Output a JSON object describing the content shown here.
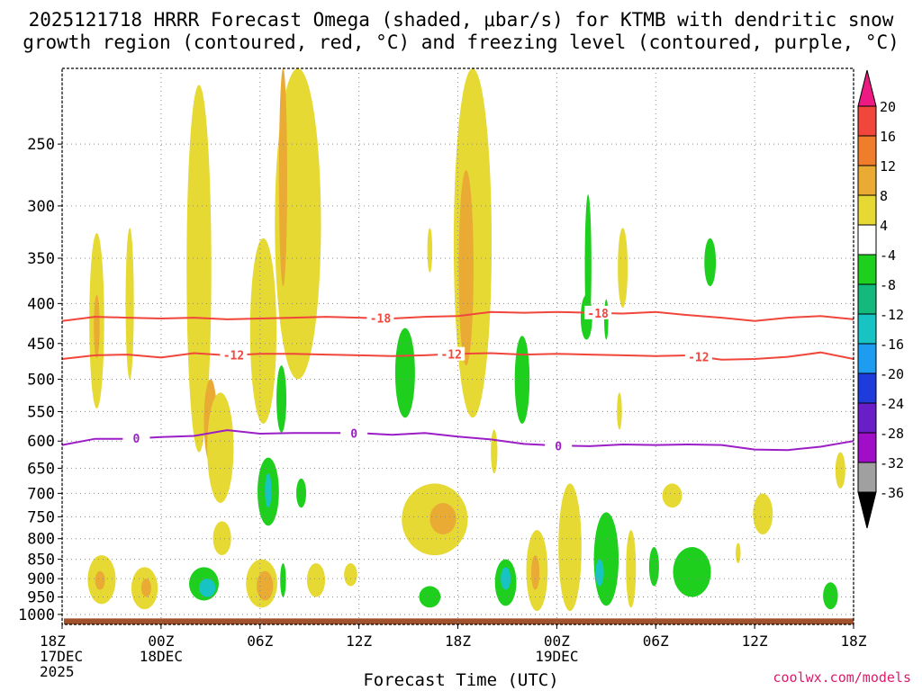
{
  "title_line1": "2025121718 HRRR Forecast Omega (shaded, μbar/s) for KTMB with dendritic snow",
  "title_line2": "growth region (contoured, red, °C) and freezing level (contoured, purple, °C)",
  "credit": "coolwx.com/models",
  "chart_data": {
    "type": "heatmap",
    "xlabel": "Forecast Time (UTC)",
    "ylabel": "",
    "x_range_hours": [
      0,
      48
    ],
    "x_ticks": [
      {
        "hour": 0,
        "lines": [
          "18Z",
          "17DEC",
          "2025"
        ]
      },
      {
        "hour": 6,
        "lines": [
          "00Z",
          "18DEC"
        ]
      },
      {
        "hour": 12,
        "lines": [
          "06Z"
        ]
      },
      {
        "hour": 18,
        "lines": [
          "12Z"
        ]
      },
      {
        "hour": 24,
        "lines": [
          "18Z"
        ]
      },
      {
        "hour": 30,
        "lines": [
          "00Z",
          "19DEC"
        ]
      },
      {
        "hour": 36,
        "lines": [
          "06Z"
        ]
      },
      {
        "hour": 42,
        "lines": [
          "12Z"
        ]
      },
      {
        "hour": 48,
        "lines": [
          "18Z"
        ]
      }
    ],
    "y_axis": "pressure (hPa), log scale, inverted",
    "y_range": [
      200,
      1030
    ],
    "y_ticks": [
      250,
      300,
      350,
      400,
      450,
      500,
      550,
      600,
      650,
      700,
      750,
      800,
      850,
      900,
      950,
      1000
    ],
    "grid": true,
    "colorbar": {
      "labels": [
        "20",
        "16",
        "12",
        "8",
        "4",
        "-4",
        "-8",
        "-12",
        "-16",
        "-20",
        "-24",
        "-28",
        "-32",
        "-36"
      ],
      "colors": [
        "#ec1a82",
        "#f0463c",
        "#f07d2b",
        "#e9ab34",
        "#e6d933",
        "#ffffff",
        "#1ecf1e",
        "#14b97d",
        "#18c3c3",
        "#1e9cf0",
        "#1e3cdc",
        "#6a1ec8",
        "#a00ec8",
        "#a0a0a0",
        "#000000"
      ]
    },
    "contours": [
      {
        "label": "-18",
        "color": "#f0463c",
        "label_hours": [
          19.3,
          32.5
        ],
        "points": [
          [
            0,
            421
          ],
          [
            2,
            416
          ],
          [
            4,
            417
          ],
          [
            6,
            418
          ],
          [
            8,
            417
          ],
          [
            10,
            419
          ],
          [
            12,
            418
          ],
          [
            14,
            417
          ],
          [
            16,
            416
          ],
          [
            18,
            417
          ],
          [
            20,
            418
          ],
          [
            22,
            416
          ],
          [
            24,
            415
          ],
          [
            26,
            410
          ],
          [
            28,
            411
          ],
          [
            30,
            410
          ],
          [
            32,
            411
          ],
          [
            34,
            412
          ],
          [
            36,
            410
          ],
          [
            38,
            414
          ],
          [
            40,
            417
          ],
          [
            42,
            421
          ],
          [
            44,
            417
          ],
          [
            46,
            415
          ],
          [
            48,
            419
          ]
        ]
      },
      {
        "label": "-12",
        "color": "#f0463c",
        "label_hours": [
          10.4,
          23.6,
          38.6
        ],
        "points": [
          [
            0,
            471
          ],
          [
            2,
            466
          ],
          [
            4,
            465
          ],
          [
            6,
            469
          ],
          [
            8,
            463
          ],
          [
            10,
            466
          ],
          [
            12,
            464
          ],
          [
            14,
            464
          ],
          [
            16,
            465
          ],
          [
            18,
            466
          ],
          [
            20,
            467
          ],
          [
            22,
            466
          ],
          [
            24,
            464
          ],
          [
            26,
            463
          ],
          [
            28,
            465
          ],
          [
            30,
            464
          ],
          [
            32,
            465
          ],
          [
            34,
            466
          ],
          [
            36,
            467
          ],
          [
            38,
            466
          ],
          [
            40,
            472
          ],
          [
            42,
            471
          ],
          [
            44,
            468
          ],
          [
            46,
            462
          ],
          [
            48,
            471
          ]
        ]
      },
      {
        "label": "0",
        "color": "#9b1ec6",
        "label_hours": [
          4.5,
          17.7,
          30.1
        ],
        "points": [
          [
            0,
            607
          ],
          [
            2,
            596
          ],
          [
            4,
            596
          ],
          [
            6,
            593
          ],
          [
            8,
            591
          ],
          [
            10,
            581
          ],
          [
            12,
            587
          ],
          [
            14,
            586
          ],
          [
            16,
            586
          ],
          [
            18,
            586
          ],
          [
            20,
            589
          ],
          [
            22,
            586
          ],
          [
            24,
            592
          ],
          [
            26,
            597
          ],
          [
            28,
            605
          ],
          [
            30,
            608
          ],
          [
            32,
            609
          ],
          [
            34,
            606
          ],
          [
            36,
            607
          ],
          [
            38,
            606
          ],
          [
            40,
            607
          ],
          [
            42,
            615
          ],
          [
            44,
            616
          ],
          [
            46,
            610
          ],
          [
            48,
            600
          ]
        ]
      }
    ],
    "omega_regions": [
      {
        "value": 4,
        "hour": 2.1,
        "p_top": 325,
        "p_bot": 545,
        "w": 0.9
      },
      {
        "value": 8,
        "hour": 2.1,
        "p_top": 390,
        "p_bot": 470,
        "w": 0.35
      },
      {
        "value": 4,
        "hour": 4.1,
        "p_top": 320,
        "p_bot": 500,
        "w": 0.5
      },
      {
        "value": 4,
        "hour": 8.3,
        "p_top": 210,
        "p_bot": 620,
        "w": 1.5
      },
      {
        "value": 8,
        "hour": 9.0,
        "p_top": 500,
        "p_bot": 640,
        "w": 0.8
      },
      {
        "value": 4,
        "hour": 9.6,
        "p_top": 520,
        "p_bot": 720,
        "w": 1.6
      },
      {
        "value": 4,
        "hour": 12.2,
        "p_top": 330,
        "p_bot": 570,
        "w": 1.6
      },
      {
        "value": 4,
        "hour": 14.3,
        "p_top": 200,
        "p_bot": 500,
        "w": 2.8
      },
      {
        "value": 8,
        "hour": 13.4,
        "p_top": 200,
        "p_bot": 380,
        "w": 0.5
      },
      {
        "value": 4,
        "hour": 14.8,
        "p_top": 320,
        "p_bot": 470,
        "w": 0.9
      },
      {
        "value": 4,
        "hour": 24.9,
        "p_top": 200,
        "p_bot": 560,
        "w": 2.3
      },
      {
        "value": 8,
        "hour": 24.5,
        "p_top": 270,
        "p_bot": 480,
        "w": 0.9
      },
      {
        "value": 4,
        "hour": 22.3,
        "p_top": 320,
        "p_bot": 365,
        "w": 0.3
      },
      {
        "value": 4,
        "hour": 34.0,
        "p_top": 320,
        "p_bot": 405,
        "w": 0.6
      },
      {
        "value": 4,
        "hour": 33.8,
        "p_top": 520,
        "p_bot": 580,
        "w": 0.3
      },
      {
        "value": 4,
        "hour": 26.2,
        "p_top": 580,
        "p_bot": 660,
        "w": 0.4
      },
      {
        "value": -4,
        "hour": 31.9,
        "p_top": 290,
        "p_bot": 440,
        "w": 0.4
      },
      {
        "value": -4,
        "hour": 31.8,
        "p_top": 390,
        "p_bot": 445,
        "w": 0.7
      },
      {
        "value": -4,
        "hour": 33.0,
        "p_top": 395,
        "p_bot": 445,
        "w": 0.25
      },
      {
        "value": -4,
        "hour": 39.3,
        "p_top": 330,
        "p_bot": 380,
        "w": 0.7
      },
      {
        "value": -4,
        "hour": 20.8,
        "p_top": 430,
        "p_bot": 560,
        "w": 1.2
      },
      {
        "value": -4,
        "hour": 27.9,
        "p_top": 440,
        "p_bot": 570,
        "w": 0.9
      },
      {
        "value": -4,
        "hour": 13.3,
        "p_top": 480,
        "p_bot": 585,
        "w": 0.6
      },
      {
        "value": -4,
        "hour": 12.5,
        "p_top": 630,
        "p_bot": 770,
        "w": 1.3
      },
      {
        "value": -12,
        "hour": 12.5,
        "p_top": 660,
        "p_bot": 730,
        "w": 0.4
      },
      {
        "value": -4,
        "hour": 14.5,
        "p_top": 670,
        "p_bot": 730,
        "w": 0.6
      },
      {
        "value": -4,
        "hour": 8.6,
        "p_top": 870,
        "p_bot": 960,
        "w": 1.8
      },
      {
        "value": -12,
        "hour": 8.8,
        "p_top": 900,
        "p_bot": 950,
        "w": 1.0
      },
      {
        "value": -4,
        "hour": 13.4,
        "p_top": 860,
        "p_bot": 950,
        "w": 0.35
      },
      {
        "value": -4,
        "hour": 22.3,
        "p_top": 920,
        "p_bot": 980,
        "w": 1.3
      },
      {
        "value": -4,
        "hour": 26.9,
        "p_top": 850,
        "p_bot": 975,
        "w": 1.3
      },
      {
        "value": -12,
        "hour": 26.9,
        "p_top": 870,
        "p_bot": 930,
        "w": 0.6
      },
      {
        "value": -4,
        "hour": 33.0,
        "p_top": 740,
        "p_bot": 975,
        "w": 1.5
      },
      {
        "value": -12,
        "hour": 32.6,
        "p_top": 850,
        "p_bot": 920,
        "w": 0.5
      },
      {
        "value": -4,
        "hour": 35.9,
        "p_top": 820,
        "p_bot": 920,
        "w": 0.6
      },
      {
        "value": -4,
        "hour": 38.2,
        "p_top": 820,
        "p_bot": 950,
        "w": 2.3
      },
      {
        "value": -4,
        "hour": 46.6,
        "p_top": 910,
        "p_bot": 985,
        "w": 0.9
      },
      {
        "value": 4,
        "hour": 2.4,
        "p_top": 840,
        "p_bot": 970,
        "w": 1.7
      },
      {
        "value": 8,
        "hour": 2.3,
        "p_top": 880,
        "p_bot": 930,
        "w": 0.6
      },
      {
        "value": 4,
        "hour": 5.0,
        "p_top": 870,
        "p_bot": 985,
        "w": 1.6
      },
      {
        "value": 8,
        "hour": 5.1,
        "p_top": 900,
        "p_bot": 950,
        "w": 0.6
      },
      {
        "value": 4,
        "hour": 9.7,
        "p_top": 760,
        "p_bot": 840,
        "w": 1.1
      },
      {
        "value": 4,
        "hour": 12.1,
        "p_top": 850,
        "p_bot": 980,
        "w": 1.9
      },
      {
        "value": 8,
        "hour": 12.3,
        "p_top": 880,
        "p_bot": 960,
        "w": 1.0
      },
      {
        "value": 4,
        "hour": 15.4,
        "p_top": 860,
        "p_bot": 950,
        "w": 1.1
      },
      {
        "value": 4,
        "hour": 17.5,
        "p_top": 860,
        "p_bot": 920,
        "w": 0.8
      },
      {
        "value": 4,
        "hour": 22.6,
        "p_top": 680,
        "p_bot": 840,
        "w": 4.0
      },
      {
        "value": 8,
        "hour": 23.1,
        "p_top": 720,
        "p_bot": 790,
        "w": 1.6
      },
      {
        "value": 4,
        "hour": 28.8,
        "p_top": 780,
        "p_bot": 990,
        "w": 1.3
      },
      {
        "value": 8,
        "hour": 28.7,
        "p_top": 840,
        "p_bot": 930,
        "w": 0.5
      },
      {
        "value": 4,
        "hour": 30.8,
        "p_top": 680,
        "p_bot": 990,
        "w": 1.4
      },
      {
        "value": 4,
        "hour": 34.5,
        "p_top": 780,
        "p_bot": 980,
        "w": 0.6
      },
      {
        "value": 4,
        "hour": 37.0,
        "p_top": 680,
        "p_bot": 730,
        "w": 1.2
      },
      {
        "value": 4,
        "hour": 42.5,
        "p_top": 700,
        "p_bot": 790,
        "w": 1.2
      },
      {
        "value": 4,
        "hour": 41.0,
        "p_top": 810,
        "p_bot": 860,
        "w": 0.3
      },
      {
        "value": 4,
        "hour": 47.2,
        "p_top": 620,
        "p_bot": 690,
        "w": 0.6
      }
    ],
    "surface_color": "#a0522d",
    "surface_pressure": 1012
  }
}
